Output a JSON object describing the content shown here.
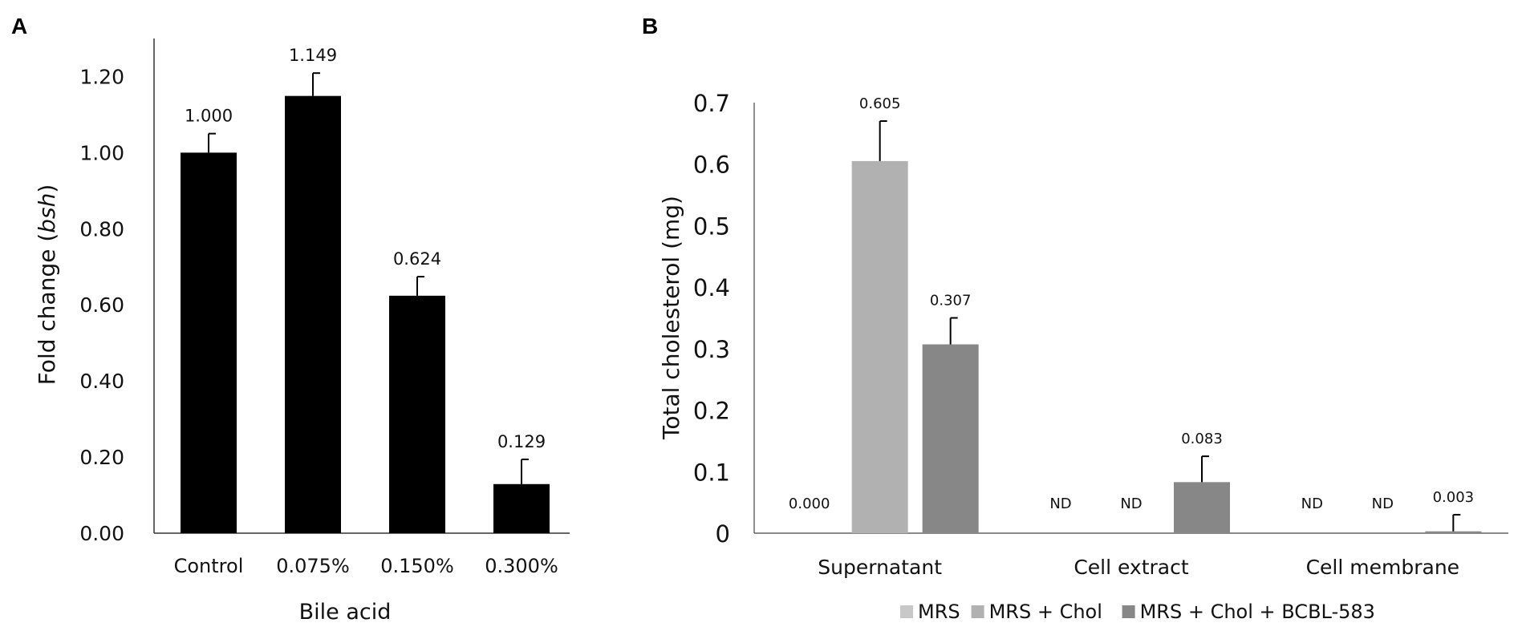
{
  "panels": [
    {
      "letter": "A",
      "chart_data": {
        "type": "bar",
        "categories": [
          "Control",
          "0.075%",
          "0.150%",
          "0.300%"
        ],
        "values": [
          1.0,
          1.149,
          0.624,
          0.129
        ],
        "errors": [
          0.05,
          0.06,
          0.05,
          0.065
        ],
        "value_labels": [
          "1.000",
          "1.149",
          "0.624",
          "0.129"
        ],
        "ylabel_prefix": "Fold change (",
        "ylabel_italic": "bsh",
        "ylabel_suffix": ")",
        "xlabel": "Bile acid",
        "yticks": [
          "0.00",
          "0.20",
          "0.40",
          "0.60",
          "0.80",
          "1.00",
          "1.20"
        ],
        "ylim": [
          0,
          1.3
        ],
        "bar_color": "#000000",
        "grid": false
      }
    },
    {
      "letter": "B",
      "chart_data": {
        "type": "bar",
        "categories": [
          "Supernatant",
          "Cell extract",
          "Cell membrane"
        ],
        "series": [
          {
            "name": "MRS",
            "color": "#c8c8c8",
            "values": [
              0.0,
              null,
              null
            ],
            "errors": [
              0,
              0,
              0
            ],
            "labels": [
              "0.000",
              "ND",
              "ND"
            ]
          },
          {
            "name": "MRS + Chol",
            "color": "#b1b1b1",
            "values": [
              0.605,
              null,
              null
            ],
            "errors": [
              0.065,
              0,
              0
            ],
            "labels": [
              "0.605",
              "ND",
              "ND"
            ]
          },
          {
            "name": "MRS + Chol + BCBL-583",
            "color": "#878787",
            "values": [
              0.307,
              0.083,
              0.003
            ],
            "errors": [
              0.043,
              0.042,
              0.027
            ],
            "labels": [
              "0.307",
              "0.083",
              "0.003"
            ]
          }
        ],
        "ylabel": "Total cholesterol (mg)",
        "xlabel": "",
        "yticks": [
          "0",
          "0.1",
          "0.2",
          "0.3",
          "0.4",
          "0.5",
          "0.6",
          "0.7"
        ],
        "ylim": [
          0,
          0.7
        ],
        "legend_position": "bottom",
        "grid": false
      }
    }
  ]
}
